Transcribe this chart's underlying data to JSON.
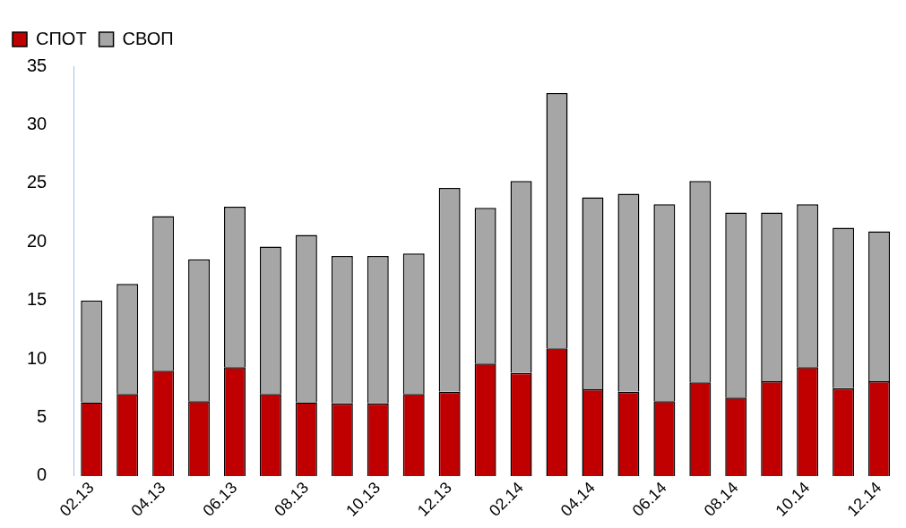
{
  "chart_data": {
    "type": "bar",
    "stacked": true,
    "categories": [
      "02.13",
      null,
      "04.13",
      null,
      "06.13",
      null,
      "08.13",
      null,
      "10.13",
      null,
      "12.13",
      null,
      "02.14",
      null,
      "04.14",
      null,
      "06.14",
      null,
      "08.14",
      null,
      "10.14",
      null,
      "12.14"
    ],
    "series": [
      {
        "name": "СПОТ",
        "color": "#c00000",
        "values": [
          6.3,
          7.0,
          9.0,
          6.4,
          9.3,
          7.0,
          6.3,
          6.2,
          6.2,
          7.0,
          7.2,
          9.6,
          8.8,
          10.9,
          7.4,
          7.2,
          6.4,
          8.0,
          6.7,
          8.1,
          9.3,
          7.5,
          8.1
        ]
      },
      {
        "name": "СВОП",
        "color": "#a6a6a6",
        "values": [
          8.7,
          9.4,
          13.2,
          12.1,
          13.7,
          12.6,
          14.3,
          12.6,
          12.6,
          12.0,
          17.4,
          13.3,
          16.4,
          21.8,
          16.4,
          16.9,
          16.8,
          17.2,
          15.8,
          14.4,
          13.9,
          13.7,
          12.8
        ]
      }
    ],
    "ylim": [
      0,
      35
    ],
    "yticks": [
      0,
      5,
      10,
      15,
      20,
      25,
      30,
      35
    ],
    "grid": false,
    "legend": "top left"
  }
}
